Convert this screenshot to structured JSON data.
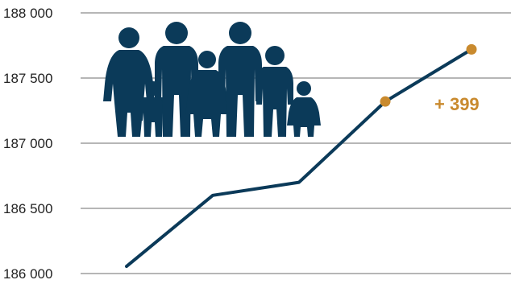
{
  "chart_data": {
    "type": "line",
    "title": "",
    "xlabel": "",
    "ylabel": "",
    "ylim": [
      186000,
      188000
    ],
    "yticks": [
      186000,
      186500,
      187000,
      187500,
      188000
    ],
    "ytick_labels": [
      "186 000",
      "186 500",
      "187 000",
      "187 500",
      "188 000"
    ],
    "grid": true,
    "series": [
      {
        "values": [
          186055,
          186600,
          186700,
          187320,
          187720
        ]
      }
    ],
    "highlighted_points": [
      3,
      4
    ],
    "annotation": "+ 399",
    "colors": {
      "line": "#0b3a59",
      "highlight": "#c98a2e",
      "icon": "#0b3a59",
      "grid": "#8a8a8a"
    }
  },
  "icons": {
    "illustration": "family-icon"
  }
}
